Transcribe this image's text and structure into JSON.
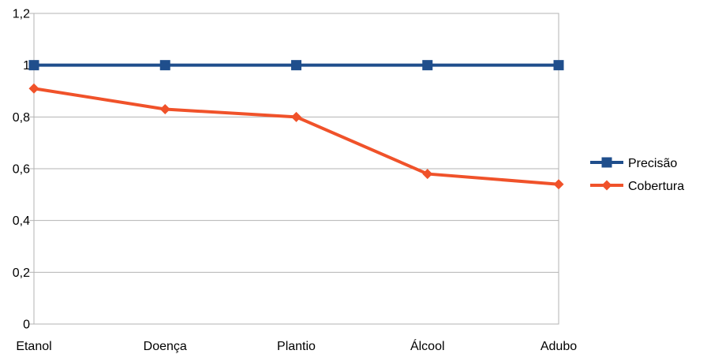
{
  "chart_data": {
    "type": "line",
    "categories": [
      "Etanol",
      "Doença",
      "Plantio",
      "Álcool",
      "Adubo"
    ],
    "series": [
      {
        "name": "Precisão",
        "values": [
          1,
          1,
          1,
          1,
          1
        ],
        "color": "#1f4e8c",
        "marker": "square"
      },
      {
        "name": "Cobertura",
        "values": [
          0.91,
          0.83,
          0.8,
          0.58,
          0.54
        ],
        "color": "#f0522a",
        "marker": "diamond"
      }
    ],
    "y_ticks": [
      "0",
      "0,2",
      "0,4",
      "0,6",
      "0,8",
      "1",
      "1,2"
    ],
    "ylim": [
      0,
      1.2
    ],
    "grid": true,
    "legend_position": "right"
  }
}
